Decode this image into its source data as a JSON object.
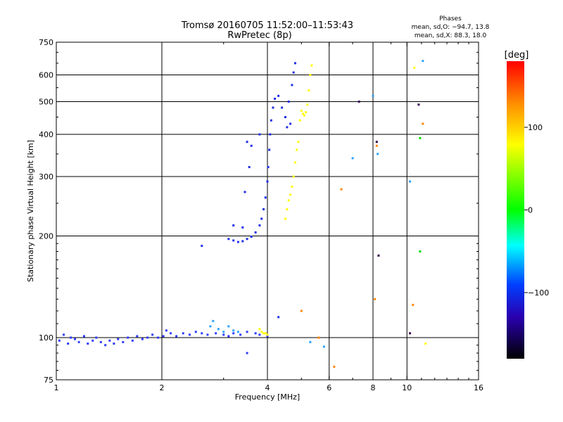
{
  "chart_data": {
    "type": "scatter",
    "title": "Tromsø 20160705 11:52:00–11:53:43",
    "subtitle": "RwPretec (8p)",
    "xlabel": "Frequency [MHz]",
    "ylabel": "Stationary phase Virtual Height [km]",
    "x_scale": "log",
    "y_scale": "log",
    "xlim": [
      1,
      16
    ],
    "ylim": [
      75,
      750
    ],
    "x_ticks": [
      1,
      2,
      4,
      6,
      8,
      10,
      16
    ],
    "y_ticks": [
      75,
      100,
      200,
      300,
      400,
      500,
      600,
      750
    ],
    "x_gridlines": [
      2,
      4,
      6,
      8,
      10
    ],
    "y_gridlines": [
      100,
      200,
      300,
      400,
      500,
      600
    ],
    "phases_box": {
      "heading": "Phases",
      "line_o": "mean, sd,O: −94.7, 13.8",
      "line_x": "mean, sd,X:  88.3, 18.0"
    },
    "colorbar": {
      "label": "[deg]",
      "ticks": [
        {
          "value": 100,
          "label": "100"
        },
        {
          "value": 0,
          "label": "0"
        },
        {
          "value": -100,
          "label": "−100"
        }
      ],
      "range": [
        -180,
        180
      ]
    },
    "series": [
      {
        "phase": -80,
        "color": "#2e3cff",
        "points": [
          [
            1.02,
            98
          ],
          [
            1.05,
            102
          ],
          [
            1.08,
            96
          ],
          [
            1.1,
            100
          ],
          [
            1.13,
            99
          ],
          [
            1.16,
            97
          ],
          [
            1.2,
            101
          ],
          [
            1.23,
            96
          ],
          [
            1.27,
            98
          ],
          [
            1.3,
            100
          ],
          [
            1.34,
            97
          ],
          [
            1.38,
            95
          ],
          [
            1.42,
            98
          ],
          [
            1.46,
            96
          ],
          [
            1.5,
            99
          ],
          [
            1.55,
            97
          ],
          [
            1.6,
            100
          ],
          [
            1.65,
            98
          ],
          [
            1.7,
            101
          ],
          [
            1.76,
            99
          ],
          [
            1.82,
            100
          ],
          [
            1.88,
            102
          ],
          [
            1.95,
            100
          ],
          [
            2.02,
            101
          ],
          [
            2.06,
            105
          ],
          [
            2.12,
            103
          ],
          [
            2.2,
            101
          ],
          [
            2.3,
            103
          ],
          [
            2.4,
            102
          ],
          [
            2.5,
            104
          ],
          [
            2.6,
            103
          ],
          [
            2.7,
            102
          ],
          [
            2.85,
            103
          ],
          [
            3.0,
            102
          ],
          [
            3.1,
            101
          ],
          [
            3.2,
            103
          ],
          [
            3.35,
            102
          ],
          [
            3.5,
            104
          ],
          [
            3.7,
            103
          ],
          [
            3.8,
            102
          ],
          [
            3.5,
            90
          ],
          [
            4.0,
            101
          ]
        ]
      },
      {
        "phase": -85,
        "color": "#1f2ee8",
        "points": [
          [
            2.6,
            187
          ],
          [
            3.1,
            196
          ],
          [
            3.2,
            194
          ],
          [
            3.3,
            192
          ],
          [
            3.4,
            193
          ],
          [
            3.5,
            196
          ],
          [
            3.6,
            199
          ],
          [
            3.7,
            205
          ],
          [
            3.8,
            215
          ],
          [
            3.85,
            225
          ],
          [
            3.9,
            240
          ],
          [
            3.95,
            260
          ],
          [
            4.0,
            290
          ],
          [
            4.02,
            320
          ],
          [
            4.05,
            360
          ],
          [
            4.07,
            400
          ],
          [
            4.1,
            440
          ],
          [
            4.15,
            480
          ],
          [
            4.2,
            510
          ],
          [
            4.3,
            520
          ],
          [
            4.4,
            480
          ],
          [
            4.5,
            450
          ],
          [
            4.6,
            500
          ],
          [
            4.7,
            560
          ],
          [
            4.75,
            610
          ],
          [
            4.8,
            650
          ],
          [
            4.55,
            420
          ],
          [
            4.65,
            430
          ],
          [
            3.5,
            380
          ],
          [
            3.6,
            370
          ],
          [
            3.55,
            320
          ],
          [
            3.45,
            270
          ],
          [
            3.2,
            215
          ],
          [
            3.4,
            212
          ],
          [
            4.3,
            115
          ],
          [
            3.8,
            400
          ]
        ]
      },
      {
        "phase": -70,
        "color": "#2aa2ff",
        "points": [
          [
            2.75,
            108
          ],
          [
            2.8,
            112
          ],
          [
            2.9,
            106
          ],
          [
            3.0,
            104
          ],
          [
            3.1,
            108
          ],
          [
            3.2,
            105
          ],
          [
            3.3,
            104
          ],
          [
            5.3,
            97
          ],
          [
            5.8,
            94
          ],
          [
            7.0,
            340
          ],
          [
            8.0,
            520
          ],
          [
            8.25,
            350
          ],
          [
            11.1,
            660
          ],
          [
            10.2,
            290
          ]
        ]
      },
      {
        "phase": 100,
        "color": "#ffff00",
        "points": [
          [
            3.8,
            106
          ],
          [
            3.85,
            104
          ],
          [
            3.9,
            103
          ],
          [
            3.95,
            103
          ],
          [
            4.0,
            102
          ],
          [
            4.5,
            225
          ],
          [
            4.55,
            240
          ],
          [
            4.6,
            255
          ],
          [
            4.65,
            265
          ],
          [
            4.7,
            280
          ],
          [
            4.75,
            300
          ],
          [
            4.8,
            330
          ],
          [
            4.85,
            360
          ],
          [
            4.9,
            380
          ],
          [
            4.95,
            440
          ],
          [
            5.0,
            470
          ],
          [
            5.05,
            460
          ],
          [
            5.1,
            455
          ],
          [
            5.15,
            465
          ],
          [
            5.2,
            490
          ],
          [
            5.25,
            540
          ],
          [
            5.3,
            600
          ],
          [
            5.35,
            640
          ],
          [
            10.5,
            630
          ],
          [
            11.3,
            96
          ]
        ]
      },
      {
        "phase": 130,
        "color": "#ff8800",
        "points": [
          [
            5.0,
            120
          ],
          [
            5.6,
            100
          ],
          [
            6.2,
            82
          ],
          [
            6.5,
            275
          ],
          [
            8.1,
            130
          ],
          [
            8.2,
            370
          ],
          [
            10.4,
            125
          ],
          [
            11.1,
            430
          ]
        ]
      },
      {
        "phase": -160,
        "color": "#3a0050",
        "points": [
          [
            7.3,
            500
          ],
          [
            8.2,
            380
          ],
          [
            8.3,
            175
          ],
          [
            10.2,
            103
          ],
          [
            10.8,
            490
          ]
        ]
      },
      {
        "phase": 0,
        "color": "#00dd00",
        "points": [
          [
            10.9,
            390
          ],
          [
            10.9,
            180
          ]
        ]
      }
    ]
  }
}
